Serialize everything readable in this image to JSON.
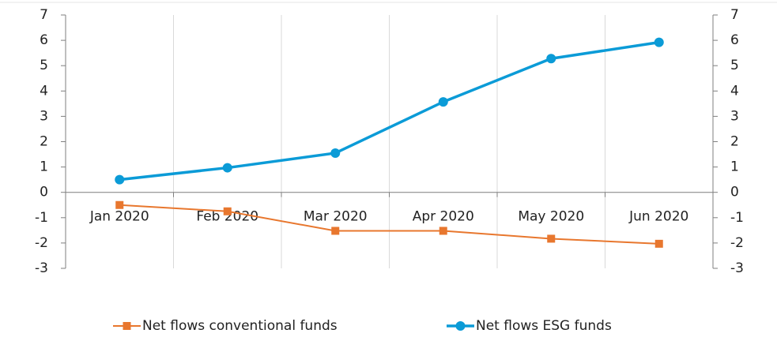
{
  "chart_data": {
    "type": "line",
    "categories": [
      "Jan 2020",
      "Feb 2020",
      "Mar 2020",
      "Apr 2020",
      "May 2020",
      "Jun 2020"
    ],
    "series": [
      {
        "name": "Net flows conventional funds",
        "color": "#e8772e",
        "marker": "square",
        "values": [
          -0.5,
          -0.75,
          -1.52,
          -1.52,
          -1.83,
          -2.03
        ]
      },
      {
        "name": "Net flows ESG funds",
        "color": "#0b9bd7",
        "marker": "circle",
        "values": [
          0.5,
          0.97,
          1.55,
          3.57,
          5.28,
          5.92
        ]
      }
    ],
    "ylim": [
      -3,
      7
    ],
    "yticks": [
      -3,
      -2,
      -1,
      0,
      1,
      2,
      3,
      4,
      5,
      6,
      7
    ],
    "y2lim": [
      -3,
      7
    ],
    "y2ticks": [
      -3,
      -2,
      -1,
      0,
      1,
      2,
      3,
      4,
      5,
      6,
      7
    ],
    "grid": true,
    "legend": "bottom"
  }
}
